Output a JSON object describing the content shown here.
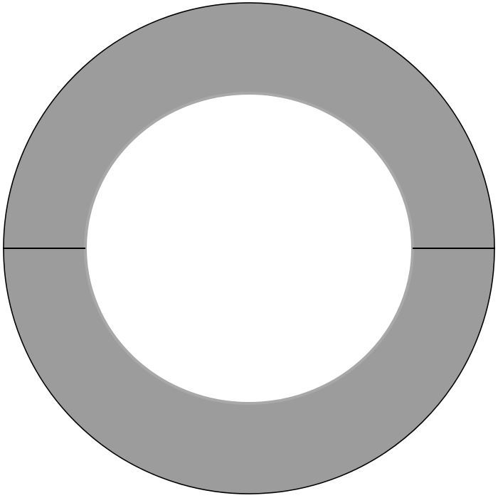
{
  "figure": {
    "shape": "annulus",
    "segments": [
      {
        "name": "upper-half",
        "fill": "#9c9c9c"
      },
      {
        "name": "lower-half",
        "fill": "#9c9c9c"
      }
    ],
    "colors": {
      "background": "#ffffff",
      "ring_fill": "#9c9c9c",
      "outer_stroke": "#000000",
      "inner_stroke": "#a8a8a8",
      "divider_stroke": "#000000"
    }
  }
}
